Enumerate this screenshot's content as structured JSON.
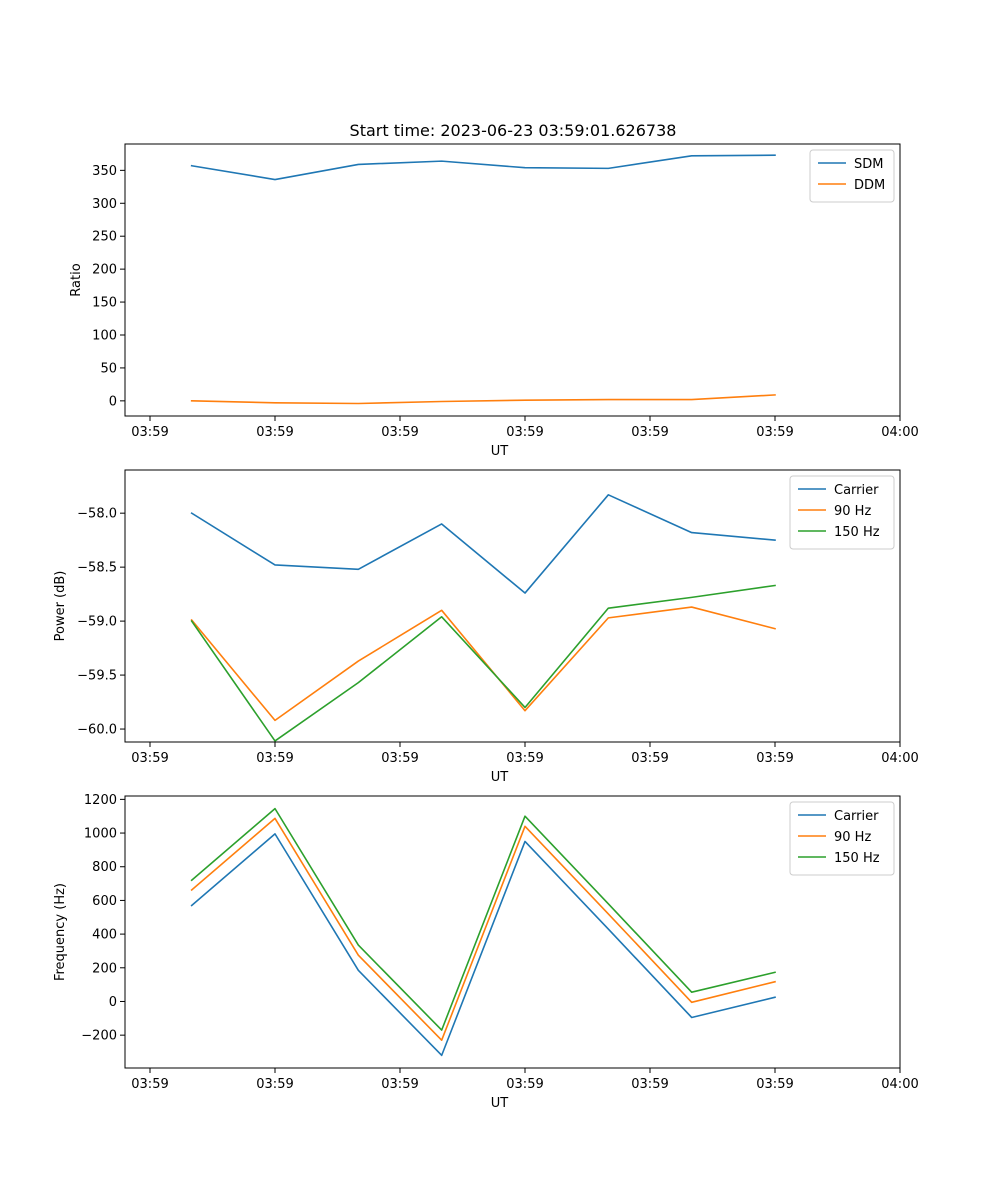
{
  "title": "Start time: 2023-06-23 03:59:01.626738",
  "colors": {
    "blue": "#1f77b4",
    "orange": "#ff7f0e",
    "green": "#2ca02c"
  },
  "chart_data": [
    {
      "type": "line",
      "title": "Start time: 2023-06-23 03:59:01.626738",
      "xlabel": "UT",
      "ylabel": "Ratio",
      "x": [
        1,
        2,
        3,
        4,
        5,
        6,
        7,
        8
      ],
      "xlim": [
        0.2,
        9.5
      ],
      "xticks": [
        0.5,
        2.0,
        3.5,
        5.0,
        6.5,
        8.0,
        9.5
      ],
      "xtick_labels": [
        "03:59",
        "03:59",
        "03:59",
        "03:59",
        "03:59",
        "03:59",
        "04:00"
      ],
      "ylim": [
        -23,
        390
      ],
      "yticks": [
        0,
        50,
        100,
        150,
        200,
        250,
        300,
        350
      ],
      "ytick_labels": [
        "0",
        "50",
        "100",
        "150",
        "200",
        "250",
        "300",
        "350"
      ],
      "legend": "top-right",
      "series": [
        {
          "name": "SDM",
          "color": "#1f77b4",
          "values": [
            357,
            336,
            359,
            364,
            354,
            353,
            372,
            373
          ]
        },
        {
          "name": "DDM",
          "color": "#ff7f0e",
          "values": [
            0,
            -3,
            -4,
            -1,
            1,
            2,
            2,
            9
          ]
        }
      ]
    },
    {
      "type": "line",
      "xlabel": "UT",
      "ylabel": "Power (dB)",
      "x": [
        1,
        2,
        3,
        4,
        5,
        6,
        7,
        8
      ],
      "xlim": [
        0.2,
        9.5
      ],
      "xticks": [
        0.5,
        2.0,
        3.5,
        5.0,
        6.5,
        8.0,
        9.5
      ],
      "xtick_labels": [
        "03:59",
        "03:59",
        "03:59",
        "03:59",
        "03:59",
        "03:59",
        "04:00"
      ],
      "ylim": [
        -60.12,
        -57.6
      ],
      "yticks": [
        -60.0,
        -59.5,
        -59.0,
        -58.5,
        -58.0
      ],
      "ytick_labels": [
        "−60.0",
        "−59.5",
        "−59.0",
        "−58.5",
        "−58.0"
      ],
      "legend": "top-right",
      "series": [
        {
          "name": "Carrier",
          "color": "#1f77b4",
          "values": [
            -58.0,
            -58.48,
            -58.52,
            -58.1,
            -58.74,
            -57.83,
            -58.18,
            -58.25
          ]
        },
        {
          "name": "90 Hz",
          "color": "#ff7f0e",
          "values": [
            -58.99,
            -59.92,
            -59.37,
            -58.9,
            -59.83,
            -58.97,
            -58.87,
            -59.07
          ]
        },
        {
          "name": "150 Hz",
          "color": "#2ca02c",
          "values": [
            -59.0,
            -60.11,
            -59.57,
            -58.96,
            -59.8,
            -58.88,
            -58.78,
            -58.67
          ]
        }
      ]
    },
    {
      "type": "line",
      "xlabel": "UT",
      "ylabel": "Frequency (Hz)",
      "x": [
        1,
        2,
        3,
        4,
        5,
        6,
        7,
        8
      ],
      "xlim": [
        0.2,
        9.5
      ],
      "xticks": [
        0.5,
        2.0,
        3.5,
        5.0,
        6.5,
        8.0,
        9.5
      ],
      "xtick_labels": [
        "03:59",
        "03:59",
        "03:59",
        "03:59",
        "03:59",
        "03:59",
        "04:00"
      ],
      "ylim": [
        -395,
        1220
      ],
      "yticks": [
        -200,
        0,
        200,
        400,
        600,
        800,
        1000,
        1200
      ],
      "ytick_labels": [
        "−200",
        "0",
        "200",
        "400",
        "600",
        "800",
        "1000",
        "1200"
      ],
      "legend": "top-right",
      "series": [
        {
          "name": "Carrier",
          "color": "#1f77b4",
          "values": [
            570,
            995,
            185,
            -320,
            950,
            430,
            -95,
            25
          ]
        },
        {
          "name": "90 Hz",
          "color": "#ff7f0e",
          "values": [
            662,
            1087,
            275,
            -230,
            1040,
            520,
            -5,
            117
          ]
        },
        {
          "name": "150 Hz",
          "color": "#2ca02c",
          "values": [
            720,
            1145,
            335,
            -170,
            1100,
            580,
            55,
            173
          ]
        }
      ]
    }
  ]
}
